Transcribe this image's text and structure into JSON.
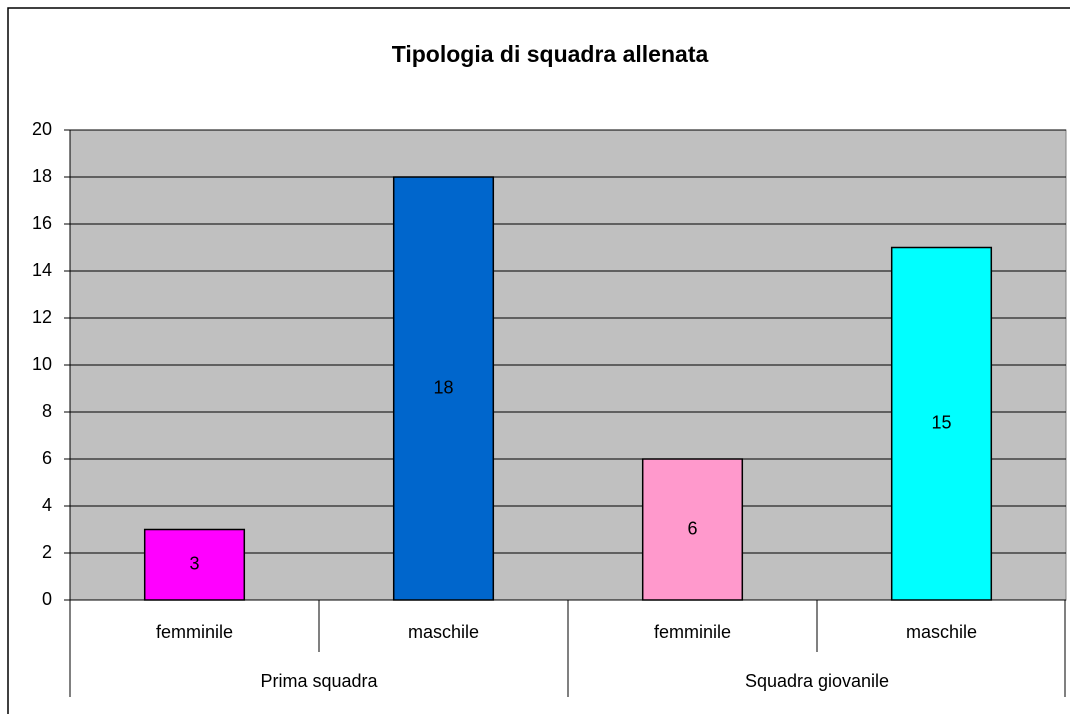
{
  "chart_data": {
    "type": "bar",
    "title": "Tipologia di squadra allenata",
    "groups": [
      {
        "name": "Prima squadra",
        "categories": [
          "femminile",
          "maschile"
        ],
        "values": [
          3,
          18
        ],
        "colors": [
          "#ff00ff",
          "#0066cc"
        ]
      },
      {
        "name": "Squadra giovanile",
        "categories": [
          "femminile",
          "maschile"
        ],
        "values": [
          6,
          15
        ],
        "colors": [
          "#ff99cc",
          "#00ffff"
        ]
      }
    ],
    "ylim": [
      0,
      20
    ],
    "yticks": [
      0,
      2,
      4,
      6,
      8,
      10,
      12,
      14,
      16,
      18,
      20
    ],
    "grid": true,
    "plot_background": "#c0c0c0"
  }
}
